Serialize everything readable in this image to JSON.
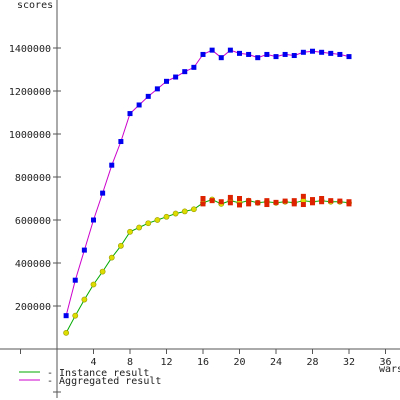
{
  "chart_data": {
    "type": "line",
    "ylabel": "scores",
    "xlabel": "wars",
    "xlim": [
      -4,
      36
    ],
    "ylim": [
      -200000,
      1500000
    ],
    "x_ticks": [
      4,
      8,
      12,
      16,
      20,
      24,
      28,
      32,
      36
    ],
    "y_ticks": [
      200000,
      400000,
      600000,
      800000,
      1000000,
      1200000,
      1400000
    ],
    "y_tick_labels": [
      "200000",
      "400000",
      "600000",
      "800000",
      "1000000",
      "1200000",
      "1400000"
    ],
    "series": [
      {
        "name": "Instance result",
        "line_color": "#00aa00",
        "marker_color": "#dddd00",
        "x": [
          1,
          2,
          3,
          4,
          5,
          6,
          7,
          8,
          9,
          10,
          11,
          12,
          13,
          14,
          15,
          16,
          17,
          18,
          19,
          20,
          21,
          22,
          23,
          24,
          25,
          26,
          27,
          28,
          29,
          30,
          31,
          32
        ],
        "y": [
          75000,
          155000,
          230000,
          300000,
          360000,
          425000,
          480000,
          545000,
          565000,
          585000,
          600000,
          615000,
          630000,
          640000,
          650000,
          680000,
          695000,
          675000,
          690000,
          680000,
          690000,
          680000,
          685000,
          680000,
          685000,
          680000,
          690000,
          685000,
          690000,
          685000,
          685000,
          680000
        ]
      },
      {
        "name": "Aggregated result",
        "line_color": "#cc00cc",
        "marker_color": "#0000ee",
        "x": [
          1,
          2,
          3,
          4,
          5,
          6,
          7,
          8,
          9,
          10,
          11,
          12,
          13,
          14,
          15,
          16,
          17,
          18,
          19,
          20,
          21,
          22,
          23,
          24,
          25,
          26,
          27,
          28,
          29,
          30,
          31,
          32
        ],
        "y": [
          155000,
          320000,
          460000,
          600000,
          725000,
          855000,
          965000,
          1095000,
          1135000,
          1175000,
          1210000,
          1245000,
          1265000,
          1290000,
          1310000,
          1370000,
          1390000,
          1355000,
          1390000,
          1375000,
          1370000,
          1355000,
          1370000,
          1360000,
          1370000,
          1365000,
          1380000,
          1385000,
          1380000,
          1375000,
          1370000,
          1360000
        ]
      }
    ],
    "extra_points": {
      "marker_color": "#dd2200",
      "x": [
        16,
        16,
        17,
        18,
        19,
        19,
        20,
        20,
        21,
        21,
        22,
        23,
        23,
        24,
        25,
        26,
        26,
        27,
        27,
        28,
        28,
        29,
        29,
        30,
        31,
        32,
        32
      ],
      "y": [
        700000,
        675000,
        690000,
        685000,
        705000,
        680000,
        700000,
        670000,
        690000,
        675000,
        680000,
        690000,
        672000,
        682000,
        688000,
        690000,
        675000,
        710000,
        672000,
        695000,
        680000,
        700000,
        685000,
        690000,
        688000,
        685000,
        675000
      ]
    }
  }
}
